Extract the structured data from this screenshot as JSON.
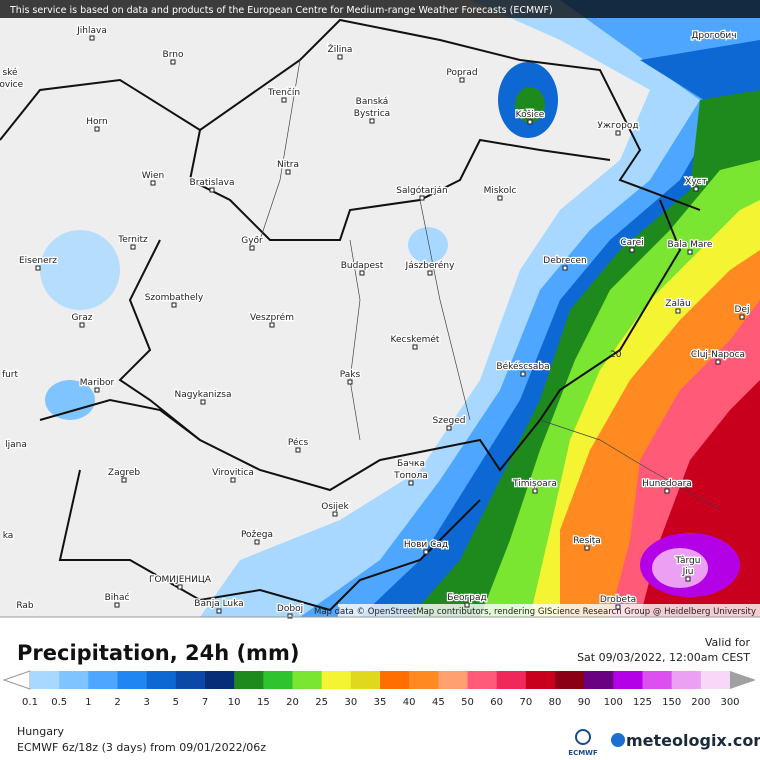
{
  "header": {
    "notice": "This service is based on data and products of the European Centre for Medium-range Weather Forecasts (ECMWF)"
  },
  "map": {
    "cities": [
      "Jihlava",
      "Brno",
      "Žilina",
      "Poprad",
      "Дрогобич",
      "ské",
      "jovice",
      "Trenčín",
      "Banská",
      "Bystrica",
      "Košice",
      "Ужгород",
      "Horn",
      "Nitra",
      "Wien",
      "Bratislava",
      "Salgótarján",
      "Miskolc",
      "Хуст",
      "Ternitz",
      "Győr",
      "Carei",
      "Bala Mare",
      "Eisenerz",
      "Budapest",
      "Jászberény",
      "Debrecen",
      "Szombathely",
      "Zalău",
      "Dej",
      "Graz",
      "Veszprém",
      "Kecskemét",
      "Cluj-Napoca",
      "Békéscsaba",
      "furt",
      "Paks",
      "Maribor",
      "Nagykanizsa",
      "ljana",
      "Szeged",
      "Pécs",
      "Zagreb",
      "Virovitica",
      "Бачка",
      "Топола",
      "Timișoara",
      "Hunedoara",
      "ka",
      "Osijek",
      "Požega",
      "Reșița",
      "Нови Сад",
      "Târgu",
      "Jiu",
      "ГОМИЈЕНИЦА",
      "Bihać",
      "Banja Luka",
      "Doboj",
      "Београд",
      "Drobeta",
      "Rab"
    ],
    "contour_label": "20",
    "attribution": "Map data © OpenStreetMap contributors, rendering GIScience Research Group @ Heidelberg University"
  },
  "legend": {
    "title": "Precipitation, 24h (mm)",
    "valid_label": "Valid for",
    "valid_time": "Sat 09/03/2022, 12:00am CEST",
    "levels": [
      0.1,
      0.5,
      1,
      2,
      3,
      5,
      7,
      10,
      15,
      20,
      25,
      30,
      35,
      40,
      45,
      50,
      60,
      70,
      80,
      90,
      100,
      125,
      150,
      200,
      300
    ],
    "under_color": "#ffffff",
    "colors": [
      "#a8d8ff",
      "#80c4ff",
      "#4ea6ff",
      "#1f86f2",
      "#0e68d4",
      "#0a4aa6",
      "#082d78",
      "#1e8a1e",
      "#2fc42f",
      "#7ae632",
      "#f4f432",
      "#e0d81c",
      "#ff6e00",
      "#ff8a22",
      "#ffa070",
      "#ff5a78",
      "#f0285a",
      "#c8001e",
      "#8c0014",
      "#6a0082",
      "#b400e6",
      "#dc50f0",
      "#eca0f4",
      "#f8d8f8",
      "#e8e8e8"
    ],
    "over_color": "#a0a0a0"
  },
  "footer": {
    "region": "Hungary",
    "model": "ECMWF 6z/18z (3 days) from 09/01/2022/06z",
    "ecmwf_logo": "ECMWF",
    "brand": "meteologix.com"
  }
}
